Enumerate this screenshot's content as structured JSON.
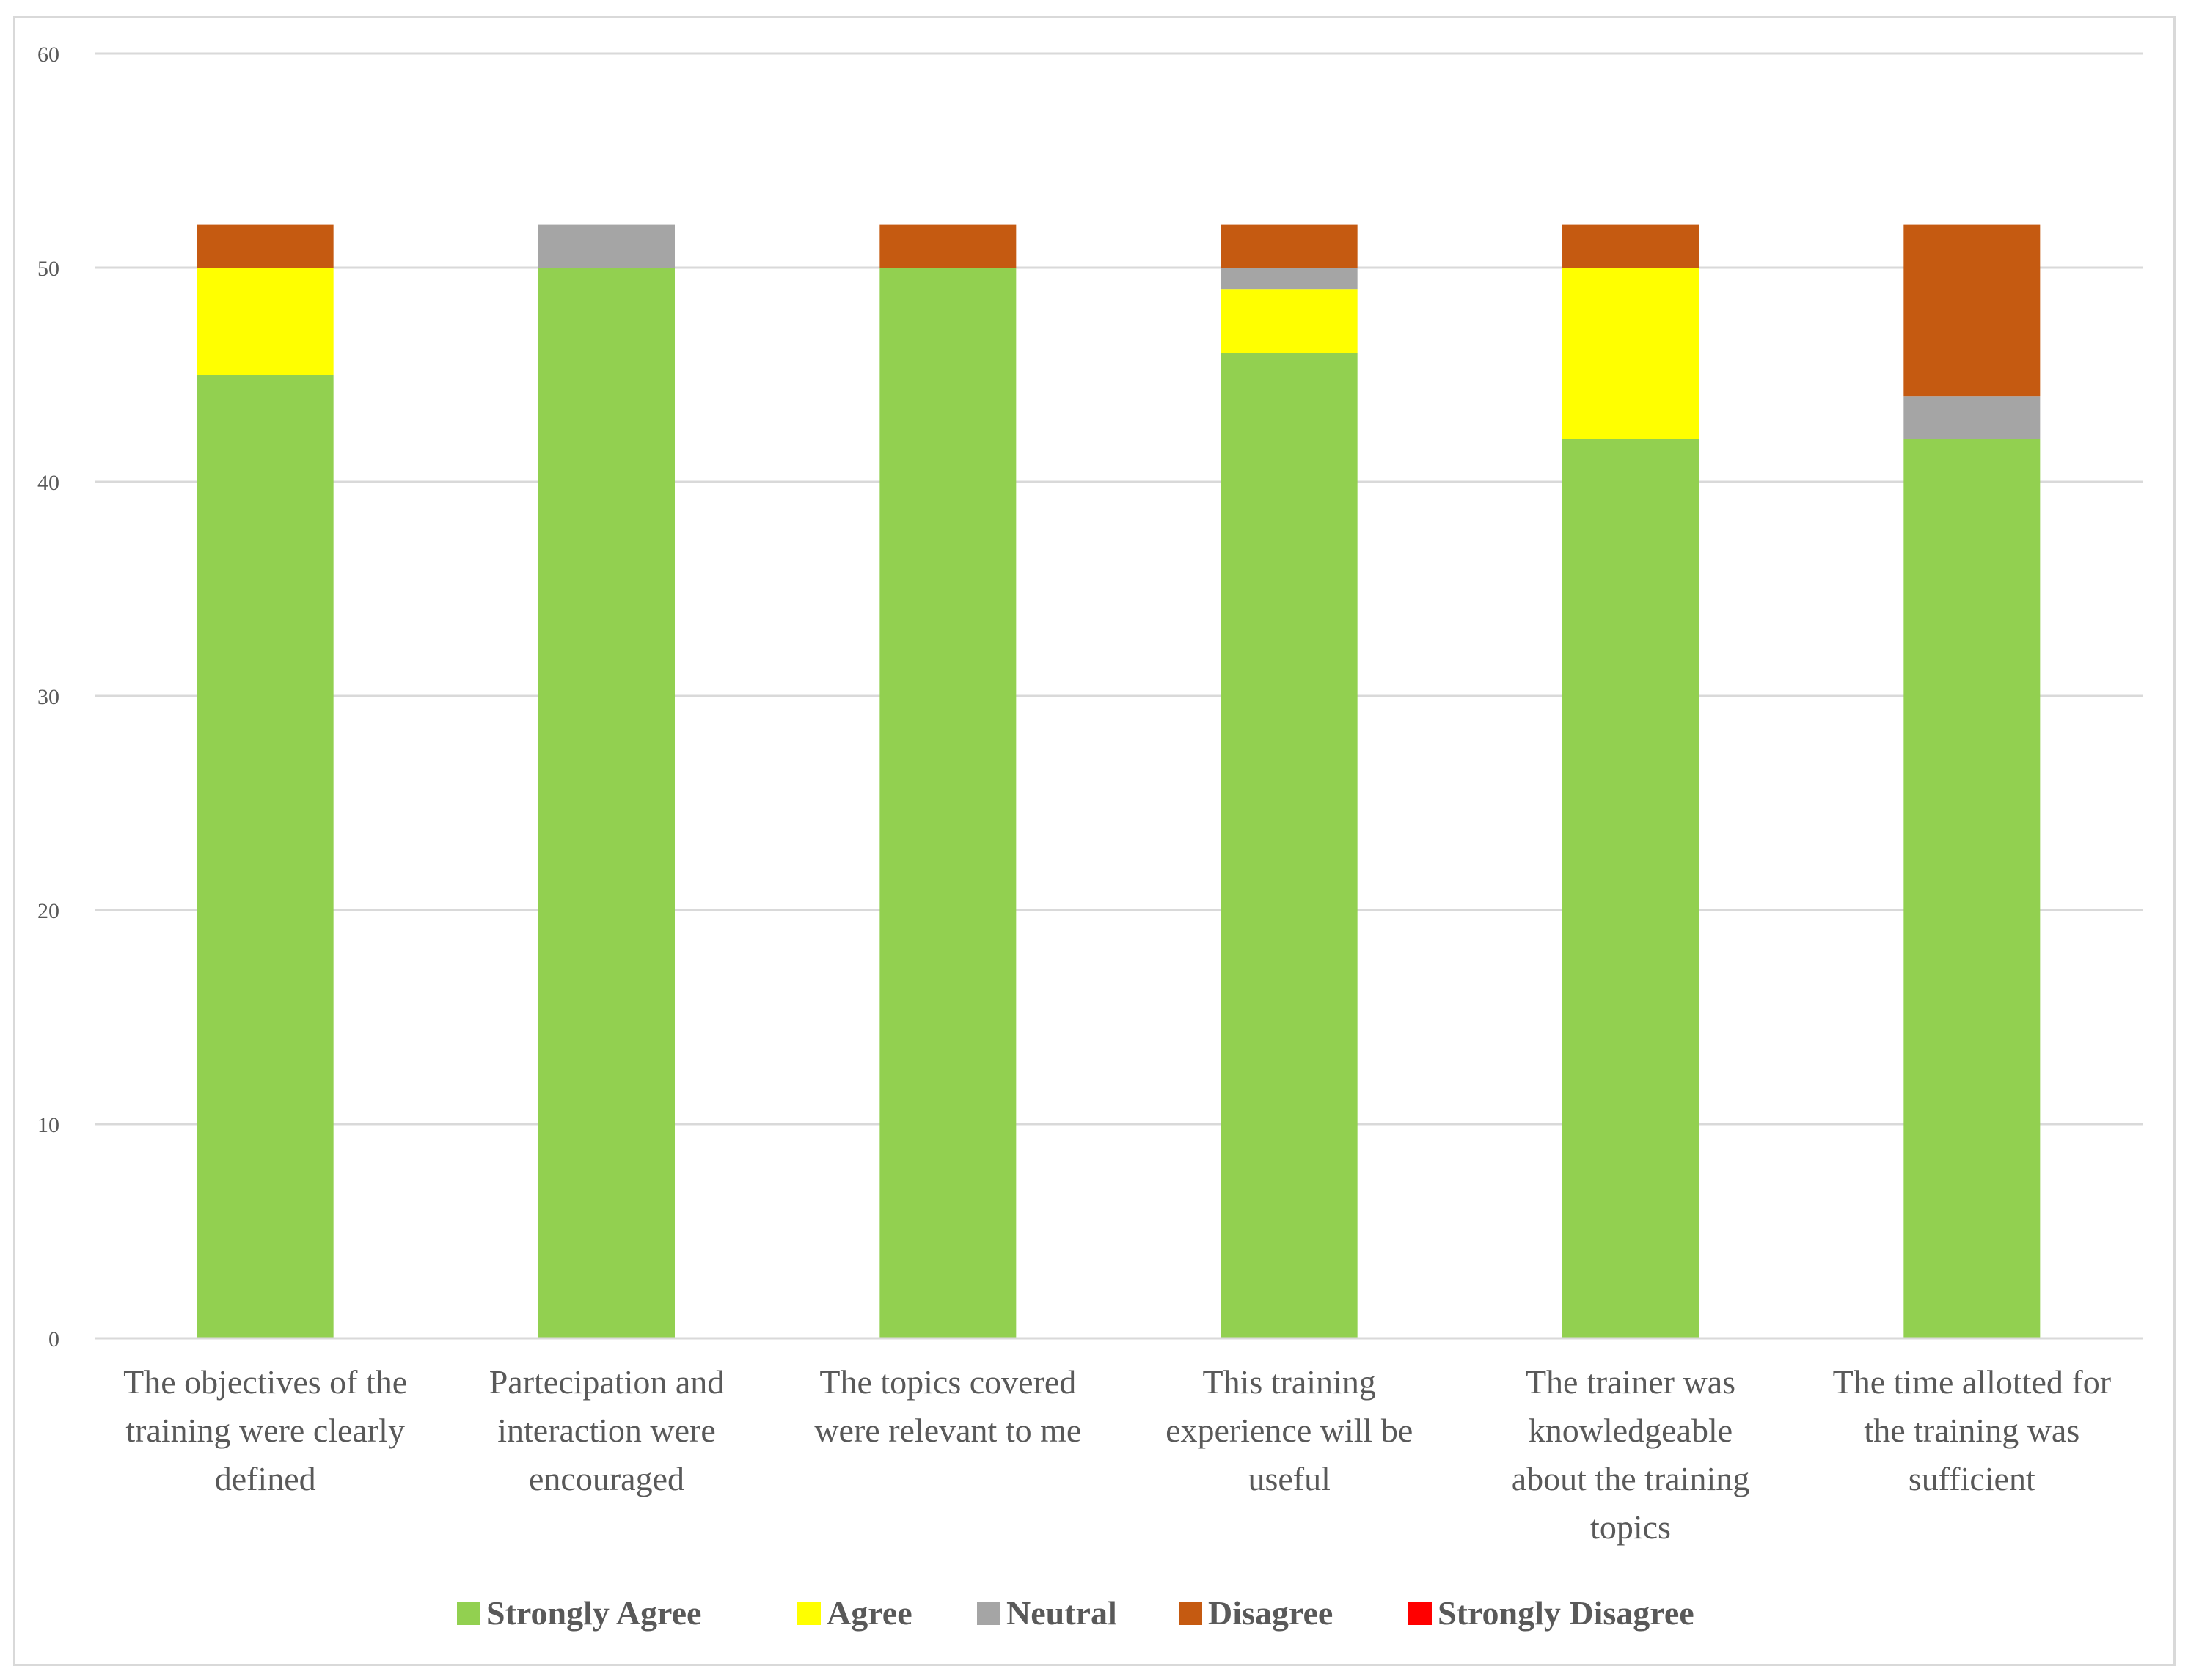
{
  "chart_data": {
    "type": "bar",
    "stacked": true,
    "title": "",
    "xlabel": "",
    "ylabel": "",
    "ylim": [
      0,
      60
    ],
    "yticks": [
      0,
      10,
      20,
      30,
      40,
      50,
      60
    ],
    "grid": true,
    "legend_position": "bottom",
    "categories": [
      [
        "The objectives of the",
        "training were clearly",
        "defined"
      ],
      [
        "Partecipation and",
        "interaction were",
        "encouraged"
      ],
      [
        "The topics covered",
        "were relevant to me"
      ],
      [
        "This training",
        "experience will be",
        "useful"
      ],
      [
        "The trainer was",
        "knowledgeable",
        "about the training",
        "topics"
      ],
      [
        "The time allotted for",
        "the training was",
        "sufficient"
      ]
    ],
    "series": [
      {
        "name": "Strongly  Agree",
        "color": "#92d050",
        "values": [
          45,
          50,
          50,
          46,
          42,
          42
        ]
      },
      {
        "name": "Agree",
        "color": "#ffff00",
        "values": [
          5,
          0,
          0,
          3,
          8,
          0
        ]
      },
      {
        "name": "Neutral",
        "color": "#a5a5a5",
        "values": [
          0,
          2,
          0,
          1,
          0,
          2
        ]
      },
      {
        "name": "Disagree",
        "color": "#c55a11",
        "values": [
          2,
          0,
          2,
          2,
          2,
          8
        ]
      },
      {
        "name": "Strongly  Disagree",
        "color": "#ff0000",
        "values": [
          0,
          0,
          0,
          0,
          0,
          0
        ]
      }
    ]
  }
}
